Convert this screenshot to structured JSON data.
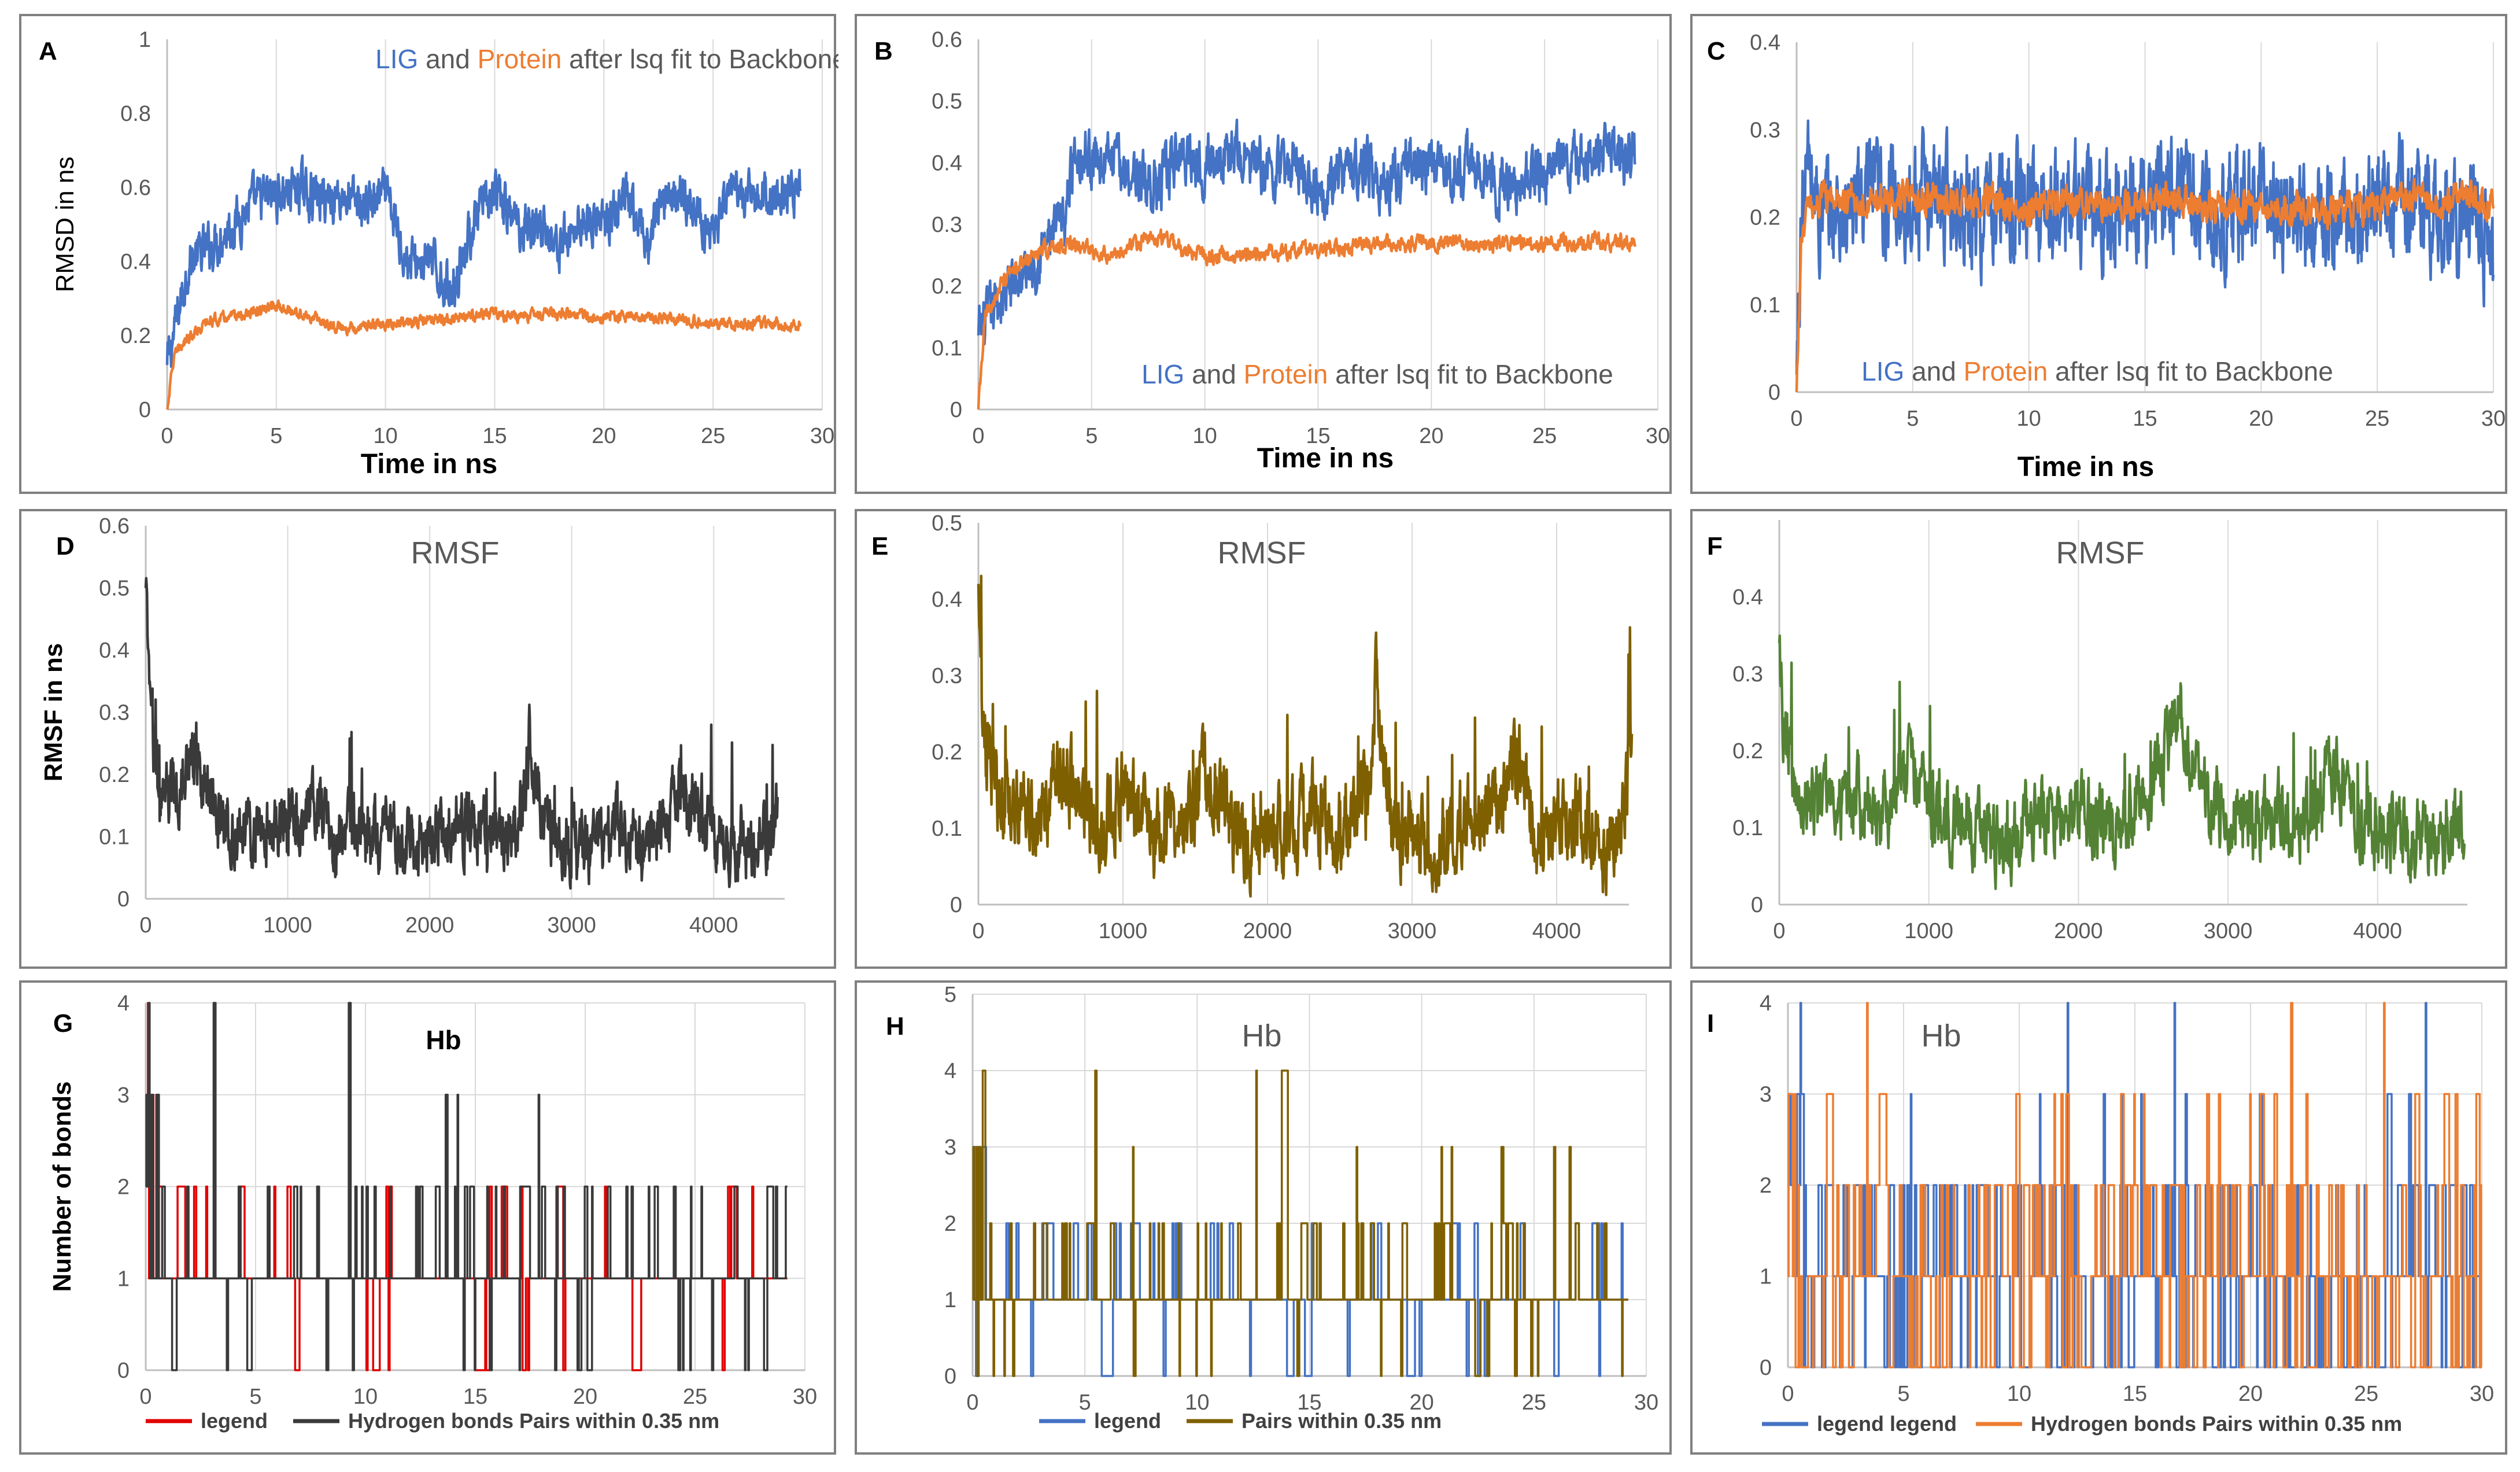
{
  "colors": {
    "lig_blue": "#4472C4",
    "protein_orange": "#ED7D31",
    "rmsf_black": "#3A3A3A",
    "rmsf_brown": "#7F6000",
    "rmsf_green": "#548235",
    "hb_red": "#E00000",
    "hb_black": "#3A3A3A",
    "hb_brown": "#7F6000",
    "tick_text": "#595959",
    "grid": "#D9D9D9",
    "title_gray": "#595959"
  },
  "panels": {
    "A": {
      "letter": "A",
      "title_parts": [
        "LIG",
        " and ",
        "Protein",
        " after lsq fit to Backbone"
      ],
      "xlabel": "Time in ns",
      "ylabel": "RMSD in ns"
    },
    "B": {
      "letter": "B",
      "title_parts": [
        "LIG",
        " and ",
        "Protein",
        " after lsq fit to Backbone"
      ],
      "xlabel": "Time in ns",
      "ylabel": ""
    },
    "C": {
      "letter": "C",
      "title_parts": [
        "LIG",
        " and ",
        "Protein",
        " after lsq fit to Backbone"
      ],
      "xlabel": "Time in ns",
      "ylabel": ""
    },
    "D": {
      "letter": "D",
      "title": "RMSF",
      "ylabel": "RMSF in ns"
    },
    "E": {
      "letter": "E",
      "title": "RMSF"
    },
    "F": {
      "letter": "F",
      "title": "RMSF"
    },
    "G": {
      "letter": "G",
      "title": "Hb",
      "ylabel": "Number of bonds",
      "legend": [
        "legend",
        "Hydrogen bonds Pairs within 0.35 nm"
      ]
    },
    "H": {
      "letter": "H",
      "title": "Hb",
      "legend": [
        "legend",
        "Pairs within 0.35 nm"
      ]
    },
    "I": {
      "letter": "I",
      "title": "Hb",
      "legend": [
        "legend legend",
        "Hydrogen bonds Pairs within 0.35 nm"
      ]
    }
  },
  "chart_data": [
    {
      "id": "A",
      "type": "line",
      "xlim": [
        0,
        30
      ],
      "ylim": [
        0,
        1
      ],
      "xticks": [
        0,
        5,
        10,
        15,
        20,
        25,
        30
      ],
      "yticks": [
        0,
        0.2,
        0.4,
        0.6,
        0.8,
        1
      ],
      "ytick_labels": [
        "0",
        "0.2",
        "0.4",
        "0.6",
        "0.8",
        "1"
      ],
      "grid": "vertical",
      "series": [
        {
          "name": "LIG",
          "color": "#4472C4",
          "x_max": 29,
          "x": [
            0,
            0.3,
            1,
            2,
            3,
            4,
            5,
            6,
            7,
            8,
            9,
            10,
            11,
            12,
            13,
            14,
            15,
            16,
            17,
            18,
            19,
            20,
            21,
            22,
            23,
            24,
            25,
            26,
            27,
            28,
            29
          ],
          "y": [
            0.12,
            0.2,
            0.4,
            0.44,
            0.5,
            0.56,
            0.58,
            0.6,
            0.57,
            0.58,
            0.55,
            0.58,
            0.4,
            0.4,
            0.32,
            0.5,
            0.58,
            0.5,
            0.5,
            0.44,
            0.52,
            0.5,
            0.56,
            0.45,
            0.6,
            0.55,
            0.48,
            0.58,
            0.57,
            0.58,
            0.59
          ],
          "noise": 0.05
        },
        {
          "name": "Protein",
          "color": "#ED7D31",
          "x_max": 29,
          "x": [
            0,
            0.3,
            1,
            2,
            3,
            4,
            5,
            6,
            7,
            8,
            10,
            12,
            14,
            15,
            16,
            18,
            20,
            22,
            24,
            26,
            28,
            29
          ],
          "y": [
            0,
            0.14,
            0.2,
            0.24,
            0.25,
            0.26,
            0.28,
            0.26,
            0.24,
            0.22,
            0.23,
            0.24,
            0.25,
            0.26,
            0.25,
            0.26,
            0.25,
            0.25,
            0.24,
            0.23,
            0.23,
            0.23
          ],
          "noise": 0.012
        }
      ]
    },
    {
      "id": "B",
      "type": "line",
      "xlim": [
        0,
        30
      ],
      "ylim": [
        0,
        0.6
      ],
      "xticks": [
        0,
        5,
        10,
        15,
        20,
        25,
        30
      ],
      "yticks": [
        0,
        0.1,
        0.2,
        0.3,
        0.4,
        0.5,
        0.6
      ],
      "ytick_labels": [
        "0",
        "0.1",
        "0.2",
        "0.3",
        "0.4",
        "0.5",
        "0.6"
      ],
      "grid": "vertical",
      "series": [
        {
          "name": "LIG",
          "color": "#4472C4",
          "x_max": 29,
          "x": [
            0,
            0.3,
            1,
            2,
            3,
            3.8,
            4.2,
            5,
            6,
            7,
            8,
            9,
            10,
            11,
            12,
            13,
            14,
            15,
            16,
            17,
            18,
            19,
            20,
            21,
            22,
            23,
            24,
            25,
            26,
            27,
            28,
            29
          ],
          "y": [
            0.12,
            0.14,
            0.18,
            0.22,
            0.27,
            0.3,
            0.42,
            0.41,
            0.4,
            0.38,
            0.36,
            0.42,
            0.4,
            0.42,
            0.4,
            0.38,
            0.4,
            0.36,
            0.38,
            0.4,
            0.36,
            0.4,
            0.39,
            0.38,
            0.4,
            0.36,
            0.37,
            0.39,
            0.4,
            0.41,
            0.42,
            0.4
          ],
          "noise": 0.035
        },
        {
          "name": "Protein",
          "color": "#ED7D31",
          "x_max": 29,
          "x": [
            0,
            0.3,
            1,
            2,
            3,
            4,
            5,
            6,
            7,
            8,
            9,
            10,
            12,
            14,
            16,
            18,
            20,
            22,
            24,
            26,
            28,
            29
          ],
          "y": [
            0,
            0.15,
            0.2,
            0.24,
            0.26,
            0.27,
            0.26,
            0.25,
            0.27,
            0.28,
            0.26,
            0.25,
            0.25,
            0.26,
            0.26,
            0.27,
            0.27,
            0.27,
            0.27,
            0.27,
            0.27,
            0.27
          ],
          "noise": 0.01
        }
      ]
    },
    {
      "id": "C",
      "type": "line",
      "xlim": [
        0,
        30
      ],
      "ylim": [
        0,
        0.4
      ],
      "xticks": [
        0,
        5,
        10,
        15,
        20,
        25,
        30
      ],
      "yticks": [
        0,
        0.1,
        0.2,
        0.3,
        0.4
      ],
      "ytick_labels": [
        "0",
        "0.1",
        "0.2",
        "0.3",
        "0.4"
      ],
      "grid": "vertical",
      "series": [
        {
          "name": "LIG",
          "color": "#4472C4",
          "x_max": 30,
          "x": [
            0,
            0.2,
            0.5,
            1,
            2,
            3,
            4,
            5,
            6,
            7,
            8,
            9,
            10,
            11,
            12,
            13,
            14,
            15,
            16,
            17,
            18,
            19,
            20,
            21,
            22,
            23,
            24,
            25,
            26,
            27,
            28,
            29,
            30
          ],
          "y": [
            0.02,
            0.2,
            0.26,
            0.2,
            0.2,
            0.22,
            0.22,
            0.22,
            0.23,
            0.22,
            0.2,
            0.21,
            0.22,
            0.2,
            0.22,
            0.2,
            0.21,
            0.22,
            0.24,
            0.23,
            0.2,
            0.21,
            0.22,
            0.2,
            0.2,
            0.21,
            0.2,
            0.21,
            0.22,
            0.21,
            0.2,
            0.2,
            0.15
          ],
          "noise": 0.05
        },
        {
          "name": "Protein",
          "color": "#ED7D31",
          "x_max": 30,
          "x": [
            0,
            0.2,
            0.5,
            1,
            2,
            3,
            4,
            5,
            6,
            8,
            10,
            12,
            14,
            16,
            18,
            20,
            22,
            24,
            26,
            28,
            30
          ],
          "y": [
            0,
            0.17,
            0.21,
            0.22,
            0.22,
            0.22,
            0.22,
            0.22,
            0.22,
            0.22,
            0.21,
            0.22,
            0.21,
            0.22,
            0.21,
            0.21,
            0.21,
            0.21,
            0.22,
            0.22,
            0.22
          ],
          "noise": 0.014
        }
      ]
    },
    {
      "id": "D",
      "type": "line",
      "xlim": [
        0,
        4500
      ],
      "ylim": [
        0,
        0.6
      ],
      "xticks": [
        0,
        1000,
        2000,
        3000,
        4000
      ],
      "yticks": [
        0,
        0.1,
        0.2,
        0.3,
        0.4,
        0.5,
        0.6
      ],
      "ytick_labels": [
        "0",
        "0.1",
        "0.2",
        "0.3",
        "0.4",
        "0.5",
        "0.6"
      ],
      "grid": "vertical",
      "series": [
        {
          "name": "",
          "color": "#3A3A3A",
          "x_max": 4450,
          "x": [
            0,
            30,
            100,
            200,
            300,
            330,
            500,
            800,
            1100,
            1180,
            1300,
            1500,
            1750,
            2000,
            2200,
            2450,
            2650,
            2700,
            2800,
            3000,
            3200,
            3300,
            3500,
            3650,
            3800,
            4000,
            4150,
            4300,
            4450
          ],
          "y": [
            0.5,
            0.3,
            0.16,
            0.18,
            0.2,
            0.26,
            0.12,
            0.1,
            0.12,
            0.18,
            0.1,
            0.11,
            0.08,
            0.1,
            0.12,
            0.1,
            0.14,
            0.26,
            0.12,
            0.07,
            0.1,
            0.12,
            0.08,
            0.13,
            0.18,
            0.1,
            0.09,
            0.08,
            0.14
          ],
          "noise": 0.045
        }
      ]
    },
    {
      "id": "E",
      "type": "line",
      "xlim": [
        0,
        4500
      ],
      "ylim": [
        0,
        0.5
      ],
      "xticks": [
        0,
        1000,
        2000,
        3000,
        4000
      ],
      "yticks": [
        0,
        0.1,
        0.2,
        0.3,
        0.4,
        0.5
      ],
      "ytick_labels": [
        "0",
        "0.1",
        "0.2",
        "0.3",
        "0.4",
        "0.5"
      ],
      "grid": "vertical",
      "series": [
        {
          "name": "",
          "color": "#7F6000",
          "x_max": 4520,
          "x": [
            0,
            30,
            150,
            400,
            600,
            800,
            1000,
            1200,
            1500,
            1550,
            1800,
            2000,
            2300,
            2500,
            2700,
            2750,
            2850,
            3100,
            3300,
            3600,
            3700,
            3900,
            4100,
            4300,
            4450,
            4520
          ],
          "y": [
            0.42,
            0.22,
            0.14,
            0.12,
            0.18,
            0.1,
            0.14,
            0.1,
            0.12,
            0.2,
            0.08,
            0.1,
            0.12,
            0.1,
            0.14,
            0.3,
            0.12,
            0.07,
            0.1,
            0.14,
            0.2,
            0.08,
            0.12,
            0.08,
            0.1,
            0.22
          ],
          "noise": 0.045
        }
      ]
    },
    {
      "id": "F",
      "type": "line",
      "xlim": [
        0,
        4600
      ],
      "ylim": [
        0,
        0.5
      ],
      "xticks": [
        0,
        1000,
        2000,
        3000,
        4000
      ],
      "yticks": [
        0,
        0.1,
        0.2,
        0.3,
        0.4
      ],
      "ytick_labels": [
        "0",
        "0.1",
        "0.2",
        "0.3",
        "0.4"
      ],
      "grid": "vertical",
      "series": [
        {
          "name": "",
          "color": "#548235",
          "x_max": 4580,
          "x": [
            0,
            30,
            150,
            400,
            700,
            900,
            1100,
            1300,
            1500,
            1700,
            2000,
            2200,
            2400,
            2600,
            2650,
            2800,
            3100,
            3300,
            3500,
            3700,
            3900,
            4100,
            4300,
            4580
          ],
          "y": [
            0.34,
            0.22,
            0.12,
            0.14,
            0.12,
            0.18,
            0.12,
            0.1,
            0.08,
            0.12,
            0.12,
            0.1,
            0.14,
            0.2,
            0.26,
            0.14,
            0.1,
            0.12,
            0.1,
            0.18,
            0.1,
            0.09,
            0.08,
            0.1
          ],
          "noise": 0.04
        }
      ]
    },
    {
      "id": "G",
      "type": "line",
      "xlim": [
        0,
        30
      ],
      "ylim": [
        0,
        4
      ],
      "xticks": [
        0,
        5,
        10,
        15,
        20,
        25,
        30
      ],
      "yticks": [
        0,
        1,
        2,
        3,
        4
      ],
      "ytick_labels": [
        "0",
        "1",
        "2",
        "3",
        "4"
      ],
      "grid": "vertical",
      "series": [
        {
          "name": "legend",
          "color": "#E00000",
          "x_max": 29.2,
          "probs": [
            0.05,
            0.85,
            0.1,
            0,
            0
          ],
          "step": 0.05
        },
        {
          "name": "Hydrogen bonds Pairs within 0.35 nm",
          "color": "#3A3A3A",
          "x_max": 29.2,
          "probs": [
            0.05,
            0.82,
            0.11,
            0.015,
            0.005
          ],
          "step": 0.03
        }
      ]
    },
    {
      "id": "H",
      "type": "line",
      "xlim": [
        0,
        30
      ],
      "ylim": [
        0,
        5
      ],
      "xticks": [
        0,
        5,
        10,
        15,
        20,
        25,
        30
      ],
      "yticks": [
        0,
        1,
        2,
        3,
        4,
        5
      ],
      "ytick_labels": [
        "0",
        "1",
        "2",
        "3",
        "4",
        "5"
      ],
      "grid": "vertical",
      "series": [
        {
          "name": "legend",
          "color": "#4472C4",
          "x_max": 29.2,
          "probs": [
            0.05,
            0.8,
            0.15,
            0,
            0
          ],
          "step": 0.05
        },
        {
          "name": "Pairs within 0.35 nm",
          "color": "#7F6000",
          "x_max": 29.2,
          "probs": [
            0.05,
            0.8,
            0.13,
            0.015,
            0.005
          ],
          "step": 0.03
        }
      ]
    },
    {
      "id": "I",
      "type": "line",
      "xlim": [
        0,
        30
      ],
      "ylim": [
        0,
        4
      ],
      "xticks": [
        0,
        5,
        10,
        15,
        20,
        25,
        30
      ],
      "yticks": [
        0,
        1,
        2,
        3,
        4
      ],
      "ytick_labels": [
        "0",
        "1",
        "2",
        "3",
        "4"
      ],
      "grid": "vertical",
      "series": [
        {
          "name": "legend legend",
          "color": "#4472C4",
          "x_max": 30,
          "probs": [
            0.25,
            0.45,
            0.28,
            0.015,
            0.005
          ],
          "step": 0.03
        },
        {
          "name": "Hydrogen bonds Pairs within 0.35 nm",
          "color": "#ED7D31",
          "x_max": 30,
          "probs": [
            0.3,
            0.42,
            0.22,
            0.05,
            0.01
          ],
          "step": 0.03
        }
      ]
    }
  ]
}
